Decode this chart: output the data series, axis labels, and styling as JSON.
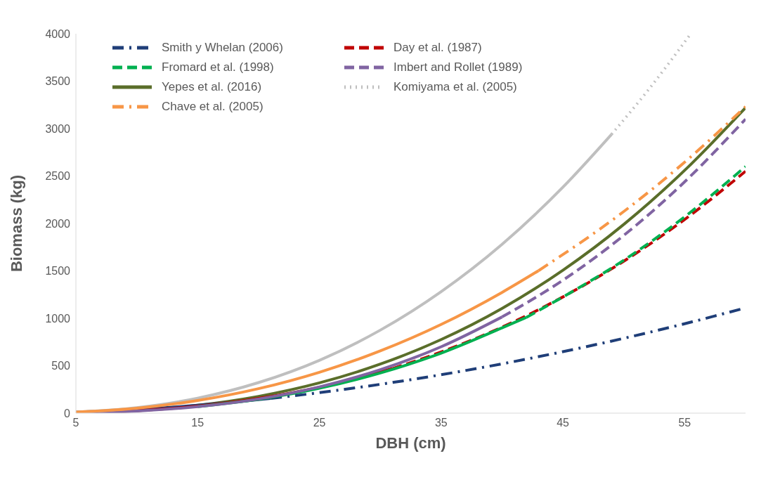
{
  "chart_data": {
    "type": "line",
    "xlabel": "DBH (cm)",
    "ylabel": "Biomass (kg)",
    "xlim": [
      5,
      60
    ],
    "xticks": [
      5,
      15,
      25,
      35,
      45,
      55
    ],
    "ylim": [
      0,
      4000
    ],
    "yticks": [
      0,
      500,
      1000,
      1500,
      2000,
      2500,
      3000,
      3500,
      4000
    ],
    "legend": "top left",
    "series": [
      {
        "name": "Smith y Whelan (2006)",
        "color": "#1f3e78",
        "line_style": "dashdot",
        "x": [
          21,
          25,
          30,
          35,
          40,
          45,
          50,
          55,
          60
        ],
        "values": [
          156,
          216,
          304,
          405,
          520,
          648,
          789,
          943,
          1110
        ]
      },
      {
        "name": "Day et al. (1987)",
        "color": "#c00000",
        "line_style": "dashed",
        "x": [
          31,
          35,
          40,
          45,
          50,
          55,
          60
        ],
        "values": [
          470,
          645,
          907,
          1225,
          1602,
          2042,
          2550
        ]
      },
      {
        "name": "Fromard et al. (1998)",
        "color": "#00b050",
        "line_style": "dashed",
        "x": [
          42,
          45,
          50,
          55,
          60
        ],
        "values": [
          1010,
          1225,
          1612,
          2070,
          2600
        ]
      },
      {
        "name": "Imbert and Rollet (1989)",
        "color": "#8064a2",
        "line_style": "dashed",
        "x": [
          40,
          45,
          50,
          55,
          60
        ],
        "values": [
          1014,
          1401,
          1874,
          2439,
          3100
        ]
      },
      {
        "name": "Yepes et al. (2016)",
        "color": "#5a6e2a",
        "line_style": "solid",
        "x": [
          5,
          10,
          15,
          20,
          25,
          30,
          35,
          40,
          45,
          50,
          55,
          60
        ],
        "values": [
          5,
          28,
          83,
          177,
          319,
          517,
          776,
          1104,
          1507,
          1990,
          2560,
          3220
        ]
      },
      {
        "name": "Komiyama et al. (2005)",
        "color": "#bfbfbf",
        "line_style": "dotted",
        "x": [
          49,
          52,
          55.5
        ],
        "values": [
          2940,
          3405,
          4000
        ]
      },
      {
        "name": "Chave et al. (2005)",
        "color": "#f79646",
        "line_style": "dashdot",
        "x": [
          43,
          50,
          55,
          60
        ],
        "values": [
          1502,
          2126,
          2646,
          3232
        ]
      },
      {
        "color": "#1f3e78",
        "line_style": "solid",
        "x": [
          5,
          10,
          15,
          20,
          21
        ],
        "values": [
          11,
          39,
          83,
          142,
          156
        ]
      },
      {
        "color": "#c00000",
        "line_style": "solid",
        "x": [
          5,
          10,
          15,
          20,
          25,
          30,
          31
        ],
        "values": [
          5,
          26,
          74,
          155,
          273,
          435,
          470
        ]
      },
      {
        "color": "#00b050",
        "line_style": "solid",
        "x": [
          15,
          20,
          25,
          30,
          35,
          40,
          42
        ],
        "values": [
          69,
          146,
          262,
          423,
          633,
          899,
          1010
        ]
      },
      {
        "color": "#8064a2",
        "line_style": "solid",
        "x": [
          5,
          10,
          15,
          20,
          25,
          30,
          35,
          40
        ],
        "values": [
          3,
          22,
          68,
          149,
          277,
          458,
          700,
          1014
        ]
      },
      {
        "color": "#bfbfbf",
        "line_style": "solid",
        "x": [
          5,
          10,
          15,
          20,
          25,
          30,
          35,
          40,
          45,
          49
        ],
        "values": [
          11,
          58,
          158,
          322,
          557,
          875,
          1281,
          1780,
          2382,
          2940
        ]
      },
      {
        "color": "#f79646",
        "line_style": "solid",
        "x": [
          5,
          10,
          15,
          20,
          25,
          30,
          35,
          40,
          43
        ],
        "values": [
          11,
          52,
          133,
          258,
          431,
          656,
          935,
          1273,
          1502
        ]
      }
    ]
  }
}
